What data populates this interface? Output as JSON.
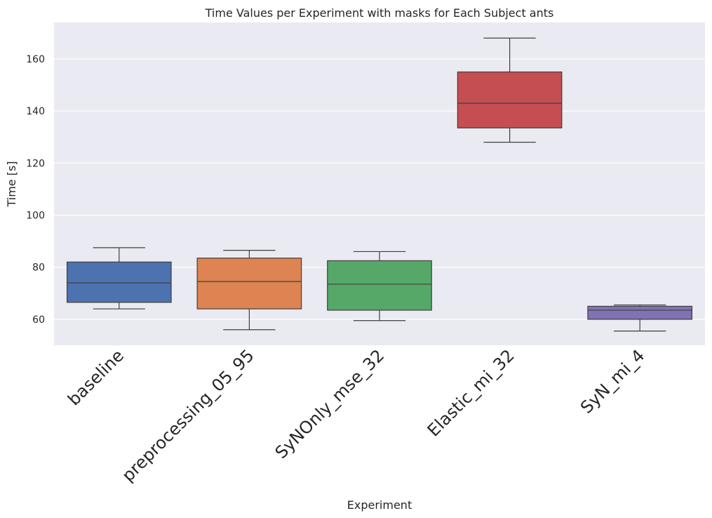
{
  "chart_data": {
    "type": "box",
    "title": "Time Values per Experiment with masks for Each Subject ants",
    "xlabel": "Experiment",
    "ylabel": "Time [s]",
    "ylim": [
      50,
      174
    ],
    "yticks": [
      60,
      80,
      100,
      120,
      140,
      160
    ],
    "grid": true,
    "categories": [
      "baseline",
      "preprocessing_05_95",
      "SyNOnly_mse_32",
      "Elastic_mi_32",
      "SyN_mi_4"
    ],
    "boxes": [
      {
        "category": "baseline",
        "min": 64,
        "q1": 66.5,
        "median": 74,
        "q3": 82,
        "max": 87.5,
        "color": "#4c72b0"
      },
      {
        "category": "preprocessing_05_95",
        "min": 56,
        "q1": 64,
        "median": 74.5,
        "q3": 83.5,
        "max": 86.5,
        "color": "#dd8452"
      },
      {
        "category": "SyNOnly_mse_32",
        "min": 59.5,
        "q1": 63.5,
        "median": 73.5,
        "q3": 82.5,
        "max": 86,
        "color": "#55a868"
      },
      {
        "category": "Elastic_mi_32",
        "min": 128,
        "q1": 133.5,
        "median": 143,
        "q3": 155,
        "max": 168,
        "color": "#c44e52"
      },
      {
        "category": "SyN_mi_4",
        "min": 55.5,
        "q1": 60,
        "median": 63.5,
        "q3": 65,
        "max": 65.5,
        "color": "#8172b3"
      }
    ],
    "plot_background": "#eaeaf2",
    "grid_color": "#ffffff",
    "line_color": "#3f3f3f"
  }
}
